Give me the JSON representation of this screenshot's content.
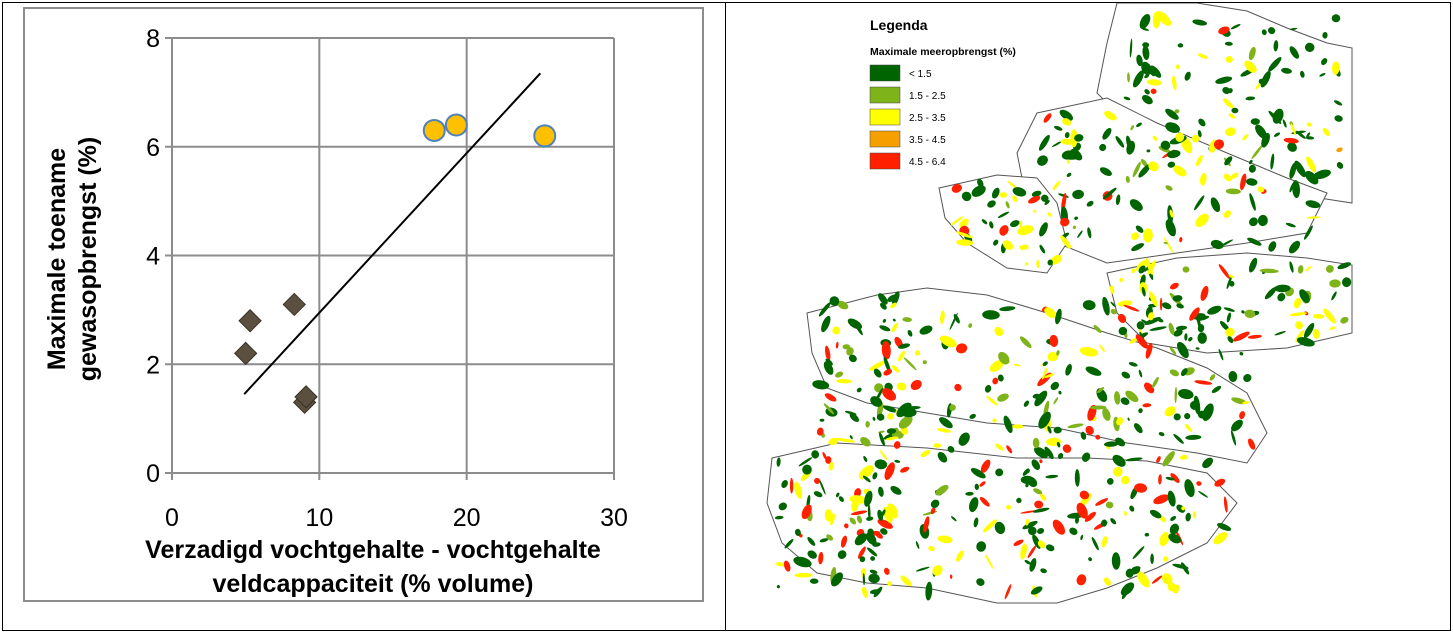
{
  "chart_data": {
    "type": "scatter",
    "xlabel_lines": [
      "Verzadigd vochtgehalte - vochtgehalte",
      "veldcappaciteit (% volume)"
    ],
    "ylabel_lines": [
      "Maximale toename",
      "gewasopbrengst (%)"
    ],
    "xlim": [
      0,
      30
    ],
    "ylim": [
      0,
      8
    ],
    "xticks": [
      "0",
      "10",
      "20",
      "30"
    ],
    "yticks": [
      "0",
      "2",
      "4",
      "6",
      "8"
    ],
    "grid": true,
    "series": [
      {
        "marker": "diamond",
        "color": "#5b5040",
        "points": [
          [
            5.0,
            2.2
          ],
          [
            5.3,
            2.8
          ],
          [
            8.3,
            3.1
          ],
          [
            9.0,
            1.3
          ],
          [
            9.1,
            1.4
          ]
        ]
      },
      {
        "marker": "circle",
        "color": "#ffc000",
        "points": [
          [
            17.8,
            6.3
          ],
          [
            19.3,
            6.4
          ],
          [
            25.3,
            6.2
          ]
        ]
      }
    ],
    "trendline": {
      "from": [
        4.9,
        1.45
      ],
      "to": [
        25.0,
        7.35
      ],
      "color": "#000000"
    }
  },
  "map": {
    "legend_title": "Legenda",
    "legend_subtitle": "Maximale meeropbrengst (%)",
    "classes": [
      {
        "label": "< 1.5",
        "color": "#006400"
      },
      {
        "label": "1.5 - 2.5",
        "color": "#7fb31a"
      },
      {
        "label": "2.5 - 3.5",
        "color": "#ffff00"
      },
      {
        "label": "3.5 - 4.5",
        "color": "#f5a000"
      },
      {
        "label": "4.5 - 6.4",
        "color": "#ff2000"
      }
    ]
  }
}
